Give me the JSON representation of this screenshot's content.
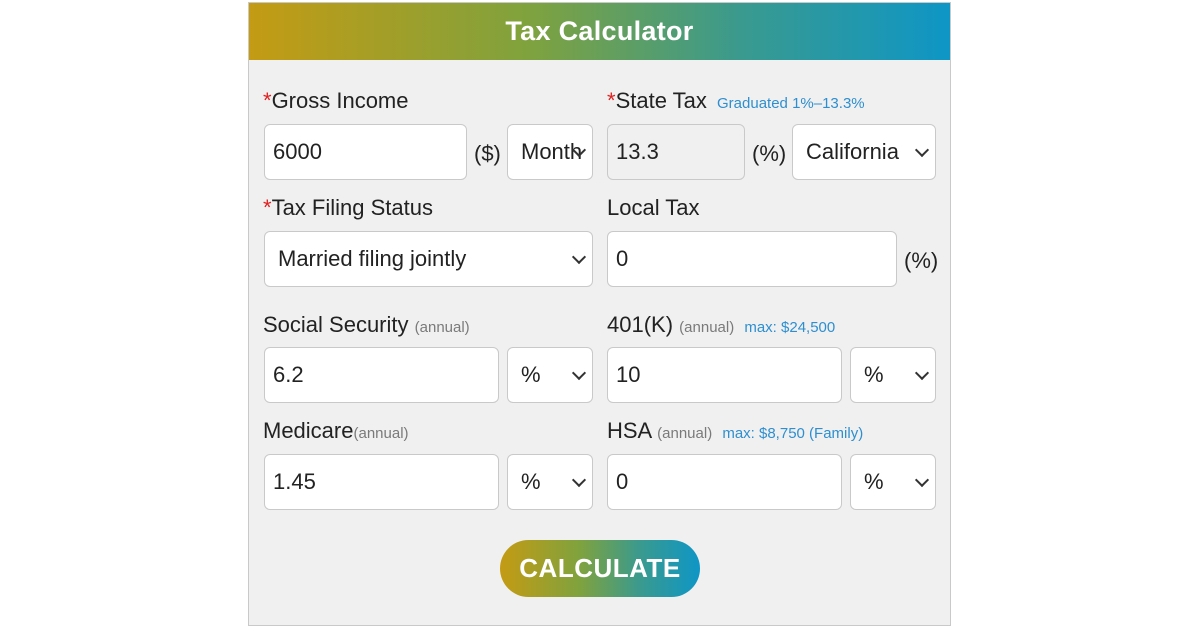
{
  "title": "Tax Calculator",
  "gross_income": {
    "required_mark": "*",
    "label": "Gross Income",
    "value": "6000",
    "unit": "($)",
    "period": "Month"
  },
  "state_tax": {
    "required_mark": "*",
    "label": "State Tax",
    "hint": "Graduated 1%–13.3%",
    "value": "13.3",
    "unit": "(%)",
    "state": "California"
  },
  "filing_status": {
    "required_mark": "*",
    "label": "Tax Filing Status",
    "value": "Married filing jointly"
  },
  "local_tax": {
    "label": "Local Tax",
    "value": "0",
    "unit": "(%)"
  },
  "social_security": {
    "label": "Social Security",
    "sub": "(annual)",
    "value": "6.2",
    "unit_select": "%"
  },
  "k401": {
    "label": "401(K)",
    "sub": "(annual)",
    "hint": "max: $24,500",
    "value": "10",
    "unit_select": "%"
  },
  "medicare": {
    "label": "Medicare",
    "sub": "(annual)",
    "value": "1.45",
    "unit_select": "%"
  },
  "hsa": {
    "label": "HSA",
    "sub": "(annual)",
    "hint": "max: $8,750 (Family)",
    "value": "0",
    "unit_select": "%"
  },
  "calculate_label": "CALCULATE"
}
